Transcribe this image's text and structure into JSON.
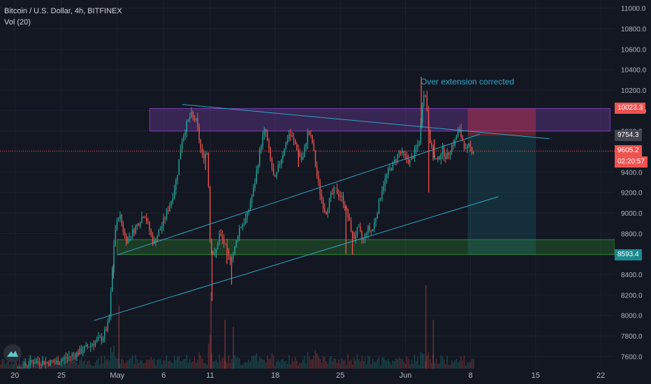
{
  "legend": {
    "symbol": "Bitcoin / U.S. Dollar, 4h, BITFINEX",
    "volume": "Vol (20)"
  },
  "annotation": "Over extension corrected",
  "price_tags": [
    {
      "id": "resistance",
      "text": "10023.3",
      "price": 10023.3,
      "color": "#ef5350"
    },
    {
      "id": "target",
      "text": "9754.3",
      "price": 9754.3,
      "color": "#434651"
    },
    {
      "id": "last",
      "text": "9605.2",
      "price": 9605.2,
      "color": "#ef5350"
    },
    {
      "id": "countdown",
      "text": "02:20:57",
      "price": 9495,
      "color": "#ef5350"
    },
    {
      "id": "support",
      "text": "8593.4",
      "price": 8593.4,
      "color": "#1b8a8f"
    }
  ],
  "chart_data": {
    "type": "candlestick",
    "symbol": "Bitcoin / U.S. Dollar",
    "interval": "4h",
    "exchange": "BITFINEX",
    "ylim": [
      7480,
      11080
    ],
    "y_ticks": [
      "7600.0",
      "7800.0",
      "8000.0",
      "8200.0",
      "8400.0",
      "8600.0",
      "8800.0",
      "9000.0",
      "9200.0",
      "9400.0",
      "9600.0",
      "9800.0",
      "10000.0",
      "10200.0",
      "10400.0",
      "10600.0",
      "10800.0",
      "11000.0"
    ],
    "x_ticks": [
      "20",
      "25",
      "May",
      "6",
      "11",
      "18",
      "25",
      "Jun",
      "8",
      "15",
      "22"
    ],
    "x_tick_days": [
      -11,
      -6,
      0,
      5,
      10,
      17,
      24,
      31,
      38,
      45,
      52
    ],
    "x_range_days": [
      -12.6,
      53.5
    ],
    "current_price": 9605.2,
    "price_path": [
      [
        -12,
        7400
      ],
      [
        -9,
        7550
      ],
      [
        -6.5,
        7540
      ],
      [
        -4,
        7640
      ],
      [
        -2.5,
        7730
      ],
      [
        -1.5,
        7780
      ],
      [
        -0.8,
        7930
      ],
      [
        -0.5,
        8350
      ],
      [
        -0.2,
        8800
      ],
      [
        0.3,
        9000
      ],
      [
        1,
        8730
      ],
      [
        2,
        8850
      ],
      [
        3,
        9000
      ],
      [
        4,
        8700
      ],
      [
        5,
        8900
      ],
      [
        6,
        9150
      ],
      [
        6.5,
        9350
      ],
      [
        7,
        9700
      ],
      [
        7.5,
        9850
      ],
      [
        8,
        9960
      ],
      [
        8.6,
        9890
      ],
      [
        9.2,
        9550
      ],
      [
        9.8,
        9600
      ],
      [
        10.1,
        8650
      ],
      [
        10.6,
        8580
      ],
      [
        11.1,
        8800
      ],
      [
        11.6,
        8700
      ],
      [
        12.1,
        8550
      ],
      [
        12.6,
        8600
      ],
      [
        13.2,
        8850
      ],
      [
        14,
        8950
      ],
      [
        14.8,
        9250
      ],
      [
        15.6,
        9700
      ],
      [
        16,
        9820
      ],
      [
        16.5,
        9550
      ],
      [
        17,
        9300
      ],
      [
        17.5,
        9470
      ],
      [
        18,
        9620
      ],
      [
        18.6,
        9780
      ],
      [
        19.3,
        9660
      ],
      [
        20,
        9500
      ],
      [
        20.6,
        9800
      ],
      [
        21.1,
        9680
      ],
      [
        21.5,
        9400
      ],
      [
        22,
        9150
      ],
      [
        22.5,
        9000
      ],
      [
        23,
        9150
      ],
      [
        23.5,
        9230
      ],
      [
        24,
        9180
      ],
      [
        24.5,
        9100
      ],
      [
        25,
        8920
      ],
      [
        25.5,
        8750
      ],
      [
        26,
        8850
      ],
      [
        26.5,
        8720
      ],
      [
        27,
        8850
      ],
      [
        27.5,
        8820
      ],
      [
        28,
        9000
      ],
      [
        28.6,
        9250
      ],
      [
        29.2,
        9400
      ],
      [
        29.8,
        9480
      ],
      [
        30.4,
        9600
      ],
      [
        31,
        9550
      ],
      [
        31.6,
        9500
      ],
      [
        32.1,
        9600
      ],
      [
        32.6,
        9700
      ],
      [
        33,
        10200
      ],
      [
        33.3,
        10120
      ],
      [
        33.6,
        9800
      ],
      [
        34,
        9550
      ],
      [
        34.5,
        9500
      ],
      [
        35,
        9620
      ],
      [
        35.5,
        9540
      ],
      [
        36,
        9650
      ],
      [
        36.4,
        9700
      ],
      [
        36.8,
        9820
      ],
      [
        37.2,
        9720
      ],
      [
        37.6,
        9600
      ],
      [
        37.9,
        9650
      ],
      [
        38.3,
        9610
      ]
    ],
    "spikes": [
      [
        -0.4,
        8360
      ],
      [
        9.5,
        9420
      ],
      [
        10.2,
        8140
      ],
      [
        11.8,
        8500
      ],
      [
        12.3,
        8300
      ],
      [
        19.5,
        9450
      ],
      [
        24.6,
        8600
      ],
      [
        25.3,
        8590
      ],
      [
        32.7,
        10330
      ],
      [
        33.5,
        9200
      ],
      [
        34.1,
        9720
      ]
    ],
    "annotations": [
      {
        "type": "trendline",
        "role": "descending resistance",
        "points": [
          [
            7,
            10060
          ],
          [
            46.5,
            9725
          ]
        ]
      },
      {
        "type": "trendline",
        "role": "ascending channel upper",
        "points": [
          [
            0,
            8590
          ],
          [
            39,
            9770
          ]
        ]
      },
      {
        "type": "trendline",
        "role": "ascending channel lower",
        "points": [
          [
            -2.5,
            7950
          ],
          [
            41,
            9160
          ]
        ]
      },
      {
        "type": "zone",
        "role": "supply",
        "x": [
          3.5,
          53
        ],
        "y": [
          9800,
          10020
        ],
        "color": "#7b3fb0"
      },
      {
        "type": "zone",
        "role": "demand",
        "x": [
          0,
          53.5
        ],
        "y": [
          8594,
          8740
        ],
        "color": "#2e7d32"
      },
      {
        "type": "zone",
        "role": "long position stop",
        "x": [
          37.7,
          45
        ],
        "y": [
          9754,
          10020
        ],
        "color": "#f23645"
      },
      {
        "type": "zone",
        "role": "long position target",
        "x": [
          37.7,
          45
        ],
        "y": [
          8594,
          9754
        ],
        "color": "#1b8a8f"
      }
    ]
  }
}
